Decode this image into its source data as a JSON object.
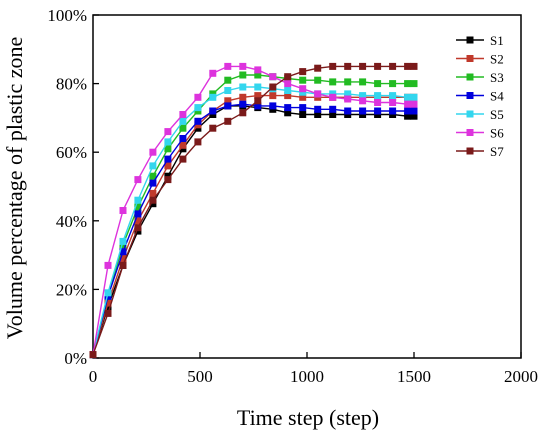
{
  "chart_data": {
    "type": "line",
    "title": "",
    "xlabel": "Time step (step)",
    "ylabel": "Volume percentage of plastic zone",
    "xlim": [
      0,
      2000
    ],
    "ylim": [
      0,
      100
    ],
    "xticks": [
      0,
      500,
      1000,
      1500,
      2000
    ],
    "yticks": [
      0,
      20,
      40,
      60,
      80,
      100
    ],
    "ytick_labels": [
      "0%",
      "20%",
      "40%",
      "60%",
      "80%",
      "100%"
    ],
    "grid": false,
    "legend_position": "top-right",
    "x": [
      0,
      70,
      140,
      210,
      280,
      350,
      420,
      490,
      560,
      630,
      700,
      770,
      840,
      910,
      980,
      1050,
      1120,
      1190,
      1260,
      1330,
      1400,
      1470,
      1500
    ],
    "series": [
      {
        "name": "S1",
        "color": "#000000",
        "values": [
          1,
          15,
          27,
          37,
          45,
          53,
          61,
          67,
          71,
          73.5,
          73.5,
          73,
          72.5,
          71.5,
          71,
          71,
          71,
          71,
          71,
          71,
          71,
          70.5,
          70.5
        ]
      },
      {
        "name": "S2",
        "color": "#c0392b",
        "values": [
          1,
          16,
          29,
          40,
          48,
          56,
          62,
          68,
          72,
          75,
          76,
          76.5,
          76.5,
          76.5,
          76,
          76,
          76,
          76,
          76,
          76,
          76,
          76,
          76
        ]
      },
      {
        "name": "S3",
        "color": "#22bb22",
        "values": [
          1,
          18,
          33,
          44,
          53,
          61,
          67,
          72,
          77,
          81,
          82.5,
          82.5,
          82,
          81.5,
          81,
          81,
          80.5,
          80.5,
          80.5,
          80,
          80,
          80,
          80
        ]
      },
      {
        "name": "S4",
        "color": "#0000dd",
        "values": [
          1,
          18,
          31,
          42,
          51,
          58,
          64,
          69,
          72,
          73.5,
          74,
          73.5,
          73.5,
          73,
          73,
          72.5,
          72.5,
          72,
          72,
          72,
          72,
          72,
          72
        ]
      },
      {
        "name": "S5",
        "color": "#33d6ee",
        "values": [
          1,
          19,
          34,
          46,
          56,
          63,
          69,
          73,
          76,
          78,
          79,
          79,
          78.5,
          78,
          77.5,
          77,
          77,
          77,
          76.5,
          76.5,
          76.5,
          76,
          76
        ]
      },
      {
        "name": "S6",
        "color": "#dd33dd",
        "values": [
          1,
          27,
          43,
          52,
          60,
          66,
          71,
          76,
          83,
          85,
          85,
          84,
          82,
          80,
          78.5,
          77,
          76,
          75.5,
          75,
          74.5,
          74.5,
          74,
          74
        ]
      },
      {
        "name": "S7",
        "color": "#7a1a1a",
        "values": [
          1,
          13,
          27,
          38,
          46,
          52,
          58,
          63,
          67,
          69,
          71.5,
          75,
          79,
          82,
          83.5,
          84.5,
          85,
          85,
          85,
          85,
          85,
          85,
          85
        ]
      }
    ]
  }
}
